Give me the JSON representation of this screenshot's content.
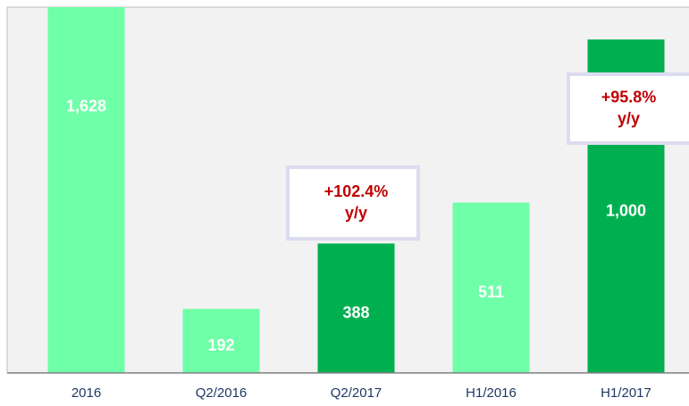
{
  "chart_data": {
    "type": "bar",
    "categories": [
      "2016",
      "Q2/2016",
      "Q2/2017",
      "H1/2016",
      "H1/2017"
    ],
    "values": [
      1628,
      192,
      388,
      511,
      1000
    ],
    "value_labels": [
      "1,628",
      "192",
      "388",
      "511",
      "1,000"
    ],
    "colors": [
      "#6fffa8",
      "#6fffa8",
      "#00b050",
      "#6fffa8",
      "#00b050"
    ],
    "ylim": [
      0,
      1097
    ],
    "annotations": [
      [
        "+102.4%",
        "y/y"
      ],
      [
        "+95.8%",
        "y/y"
      ]
    ]
  }
}
